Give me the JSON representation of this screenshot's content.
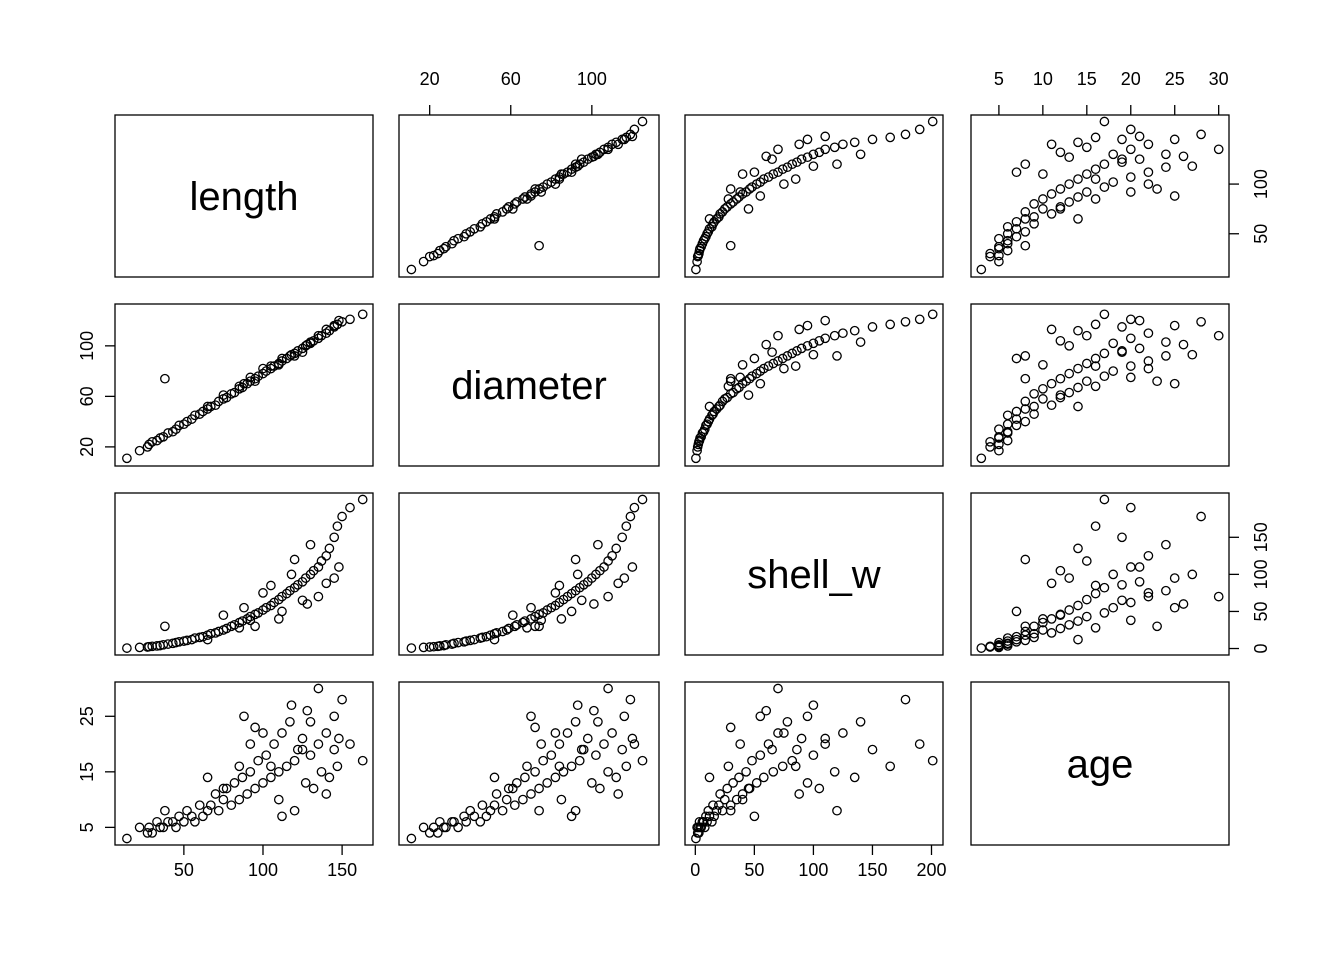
{
  "chart_data": {
    "type": "scatter",
    "variables": [
      {
        "label": "length",
        "range": [
          13,
          163
        ],
        "ticks": [
          50,
          100,
          150
        ]
      },
      {
        "label": "diameter",
        "range": [
          10,
          128
        ],
        "ticks": [
          20,
          60,
          100
        ]
      },
      {
        "label": "shell_w",
        "range": [
          0,
          201
        ],
        "ticks": [
          0,
          50,
          100,
          150,
          200
        ]
      },
      {
        "label": "age",
        "range": [
          3,
          30
        ],
        "ticks": [
          5,
          10,
          15,
          20,
          25,
          30
        ]
      }
    ],
    "axis_ticks": {
      "bottom": [
        {
          "variable": 0,
          "labels": [
            "50",
            "100",
            "150"
          ]
        },
        {
          "variable": 2,
          "labels": [
            "0",
            "50",
            "100",
            "150",
            "200"
          ]
        }
      ],
      "top": [
        {
          "variable": 1,
          "labels": [
            "20",
            "60",
            "100"
          ]
        },
        {
          "variable": 3,
          "labels": [
            "5",
            "10",
            "15",
            "20",
            "25",
            "30"
          ]
        }
      ],
      "left": [
        {
          "variable": 1,
          "labels": [
            "20",
            "60",
            "100"
          ]
        },
        {
          "variable": 3,
          "labels": [
            "5",
            "15",
            "25"
          ]
        }
      ],
      "right": [
        {
          "variable": 0,
          "labels": [
            "50",
            "100"
          ]
        },
        {
          "variable": 2,
          "labels": [
            "0",
            "50",
            "100",
            "150"
          ]
        }
      ]
    },
    "points": [
      [
        14,
        11,
        0.5,
        3
      ],
      [
        22,
        17,
        1.5,
        5
      ],
      [
        27,
        20,
        2,
        4
      ],
      [
        28,
        22,
        2.5,
        5
      ],
      [
        30,
        24,
        3,
        4
      ],
      [
        33,
        25,
        3.5,
        6
      ],
      [
        35,
        27,
        4,
        5
      ],
      [
        37,
        28,
        5,
        5
      ],
      [
        38,
        74,
        30,
        8
      ],
      [
        40,
        31,
        6,
        6
      ],
      [
        43,
        32,
        7,
        6
      ],
      [
        45,
        34,
        8,
        5
      ],
      [
        47,
        37,
        9,
        7
      ],
      [
        50,
        38,
        10,
        6
      ],
      [
        52,
        40,
        11,
        8
      ],
      [
        55,
        42,
        12,
        7
      ],
      [
        57,
        45,
        14,
        6
      ],
      [
        60,
        46,
        15,
        9
      ],
      [
        62,
        48,
        16,
        7
      ],
      [
        65,
        50,
        18,
        8
      ],
      [
        67,
        52,
        20,
        9
      ],
      [
        70,
        53,
        21,
        11
      ],
      [
        72,
        56,
        23,
        8
      ],
      [
        75,
        58,
        25,
        10
      ],
      [
        77,
        59,
        27,
        12
      ],
      [
        80,
        62,
        30,
        9
      ],
      [
        82,
        63,
        32,
        13
      ],
      [
        85,
        66,
        35,
        10
      ],
      [
        87,
        67,
        37,
        14
      ],
      [
        90,
        70,
        40,
        11
      ],
      [
        92,
        72,
        43,
        15
      ],
      [
        95,
        74,
        46,
        12
      ],
      [
        97,
        76,
        48,
        17
      ],
      [
        100,
        78,
        52,
        13
      ],
      [
        102,
        80,
        55,
        18
      ],
      [
        105,
        82,
        58,
        14
      ],
      [
        107,
        84,
        62,
        20
      ],
      [
        110,
        86,
        66,
        15
      ],
      [
        112,
        88,
        70,
        22
      ],
      [
        115,
        90,
        74,
        16
      ],
      [
        117,
        92,
        78,
        24
      ],
      [
        120,
        94,
        82,
        17
      ],
      [
        122,
        96,
        86,
        19
      ],
      [
        125,
        98,
        90,
        21
      ],
      [
        127,
        100,
        95,
        13
      ],
      [
        130,
        102,
        100,
        18
      ],
      [
        132,
        104,
        105,
        12
      ],
      [
        135,
        106,
        110,
        20
      ],
      [
        137,
        108,
        118,
        15
      ],
      [
        140,
        110,
        125,
        22
      ],
      [
        142,
        112,
        135,
        14
      ],
      [
        145,
        115,
        150,
        19
      ],
      [
        147,
        117,
        165,
        16
      ],
      [
        150,
        119,
        178,
        28
      ],
      [
        155,
        121,
        190,
        20
      ],
      [
        163,
        125,
        201,
        17
      ],
      [
        95,
        72,
        30,
        23
      ],
      [
        88,
        70,
        55,
        25
      ],
      [
        110,
        85,
        40,
        10
      ],
      [
        120,
        92,
        120,
        8
      ],
      [
        128,
        101,
        60,
        26
      ],
      [
        135,
        108,
        70,
        30
      ],
      [
        140,
        113,
        88,
        11
      ],
      [
        118,
        93,
        100,
        27
      ],
      [
        100,
        82,
        75,
        22
      ],
      [
        85,
        68,
        28,
        16
      ],
      [
        75,
        61,
        45,
        12
      ],
      [
        65,
        52,
        12,
        14
      ],
      [
        130,
        103,
        140,
        24
      ],
      [
        145,
        116,
        95,
        25
      ],
      [
        148,
        120,
        110,
        21
      ],
      [
        125,
        95,
        65,
        19
      ],
      [
        112,
        90,
        50,
        7
      ],
      [
        105,
        84,
        85,
        16
      ],
      [
        92,
        75,
        38,
        20
      ]
    ]
  }
}
